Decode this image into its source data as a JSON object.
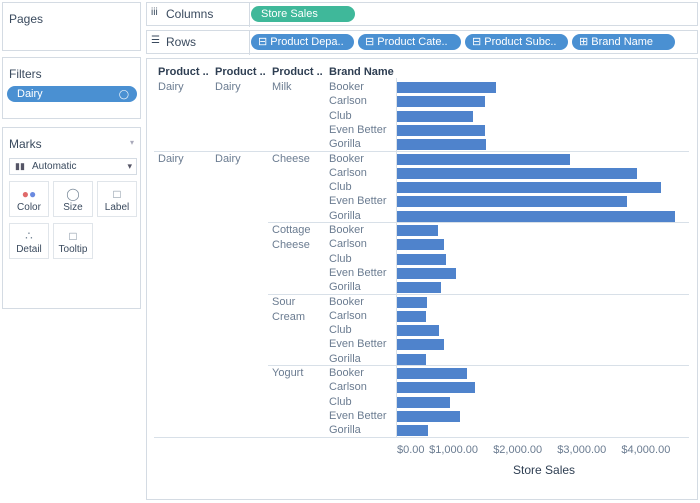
{
  "pages": {
    "title": "Pages"
  },
  "filters": {
    "title": "Filters",
    "pill": "Dairy"
  },
  "marks": {
    "title": "Marks",
    "mark_type": "Automatic",
    "buttons": [
      {
        "label": "Color",
        "icon": "color-icon"
      },
      {
        "label": "Size",
        "icon": "size-icon"
      },
      {
        "label": "Label",
        "icon": "label-icon"
      },
      {
        "label": "Detail",
        "icon": "detail-icon"
      },
      {
        "label": "Tooltip",
        "icon": "tooltip-icon"
      }
    ]
  },
  "shelves": {
    "columns_label": "Columns",
    "columns_pill": "Store Sales",
    "rows_label": "Rows",
    "rows_pills": [
      "Product Depa..",
      "Product Cate..",
      "Product Subc..",
      "Brand Name"
    ]
  },
  "table_headers": [
    "Product ..",
    "Product ..",
    "Product ..",
    "Brand Name"
  ],
  "group_labels": {
    "dept1": "Dairy",
    "cat1": "Dairy",
    "sub_milk": "Milk",
    "dept2": "Dairy",
    "cat2": "Dairy",
    "sub_cheese": "Cheese",
    "sub_cottage_1": "Cottage",
    "sub_cottage_2": "Cheese",
    "sub_sour_1": "Sour",
    "sub_sour_2": "Cream",
    "sub_yogurt": "Yogurt"
  },
  "colors": {
    "bar": "#4f83cc",
    "pill_blue": "#4a90d2",
    "pill_green": "#3fb89a"
  },
  "chart_data": {
    "type": "bar",
    "orientation": "horizontal",
    "xlabel": "Store Sales",
    "xlim": [
      0,
      4300
    ],
    "ticks": [
      "$0.00",
      "$1,000.00",
      "$2,000.00",
      "$3,000.00",
      "$4,000.00"
    ],
    "tick_values": [
      0,
      1000,
      2000,
      3000,
      4000
    ],
    "rows": [
      {
        "subcategory": "Milk",
        "brand": "Booker",
        "value": 1550
      },
      {
        "subcategory": "Milk",
        "brand": "Carlson",
        "value": 1370
      },
      {
        "subcategory": "Milk",
        "brand": "Club",
        "value": 1180
      },
      {
        "subcategory": "Milk",
        "brand": "Even Better",
        "value": 1370
      },
      {
        "subcategory": "Milk",
        "brand": "Gorilla",
        "value": 1390
      },
      {
        "subcategory": "Cheese",
        "brand": "Booker",
        "value": 2700
      },
      {
        "subcategory": "Cheese",
        "brand": "Carlson",
        "value": 3750
      },
      {
        "subcategory": "Cheese",
        "brand": "Club",
        "value": 4120
      },
      {
        "subcategory": "Cheese",
        "brand": "Even Better",
        "value": 3590
      },
      {
        "subcategory": "Cheese",
        "brand": "Gorilla",
        "value": 4340
      },
      {
        "subcategory": "Cottage Cheese",
        "brand": "Booker",
        "value": 640
      },
      {
        "subcategory": "Cottage Cheese",
        "brand": "Carlson",
        "value": 740
      },
      {
        "subcategory": "Cottage Cheese",
        "brand": "Club",
        "value": 770
      },
      {
        "subcategory": "Cottage Cheese",
        "brand": "Even Better",
        "value": 920
      },
      {
        "subcategory": "Cottage Cheese",
        "brand": "Gorilla",
        "value": 690
      },
      {
        "subcategory": "Sour Cream",
        "brand": "Booker",
        "value": 470
      },
      {
        "subcategory": "Sour Cream",
        "brand": "Carlson",
        "value": 450
      },
      {
        "subcategory": "Sour Cream",
        "brand": "Club",
        "value": 650
      },
      {
        "subcategory": "Sour Cream",
        "brand": "Even Better",
        "value": 730
      },
      {
        "subcategory": "Sour Cream",
        "brand": "Gorilla",
        "value": 460
      },
      {
        "subcategory": "Yogurt",
        "brand": "Booker",
        "value": 1090
      },
      {
        "subcategory": "Yogurt",
        "brand": "Carlson",
        "value": 1220
      },
      {
        "subcategory": "Yogurt",
        "brand": "Club",
        "value": 830
      },
      {
        "subcategory": "Yogurt",
        "brand": "Even Better",
        "value": 980
      },
      {
        "subcategory": "Yogurt",
        "brand": "Gorilla",
        "value": 490
      }
    ]
  }
}
